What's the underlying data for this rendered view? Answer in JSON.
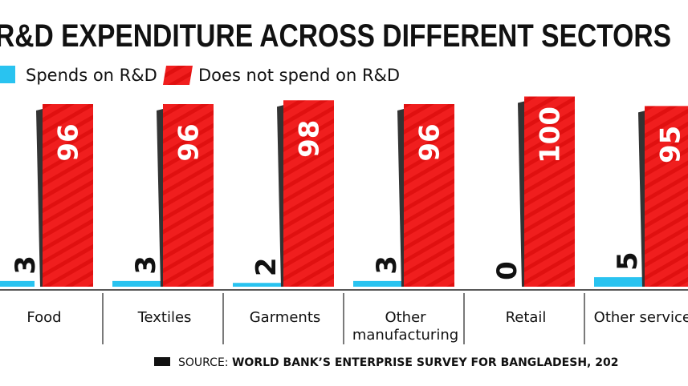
{
  "chart_data": {
    "type": "bar",
    "title": "R&D EXPENDITURE ACROSS DIFFERENT SECTORS",
    "categories": [
      "Food",
      "Textiles",
      "Garments",
      "Other manufacturing",
      "Retail",
      "Other services"
    ],
    "category_lines": [
      [
        "Food"
      ],
      [
        "Textiles"
      ],
      [
        "Garments"
      ],
      [
        "Other",
        "manufacturing"
      ],
      [
        "Retail"
      ],
      [
        "Other services"
      ]
    ],
    "series": [
      {
        "name": "Spends on R&D",
        "color": "#29c3f0",
        "values": [
          3,
          3,
          2,
          3,
          0,
          5
        ]
      },
      {
        "name": "Does not spend on R&D",
        "color": "#f01e1e",
        "values": [
          96,
          96,
          98,
          96,
          100,
          95
        ]
      }
    ],
    "ylim": [
      0,
      100
    ],
    "xlabel": "",
    "ylabel": "",
    "grid": false,
    "legend_position": "top-left",
    "source_label": "SOURCE:",
    "source_text": "WORLD BANK’S ENTERPRISE SURVEY  FOR BANGLADESH, 202"
  }
}
